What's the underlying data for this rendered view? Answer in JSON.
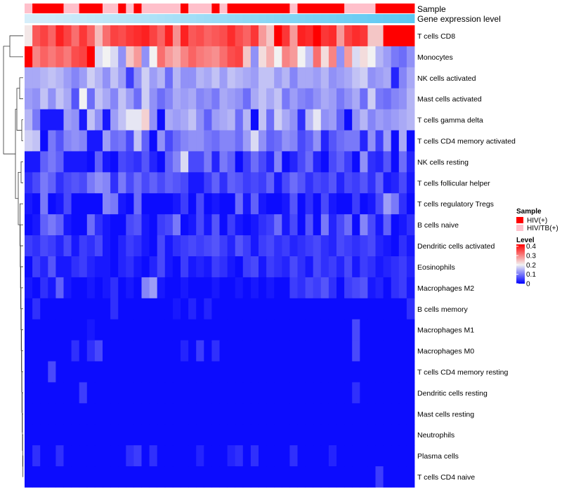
{
  "chart_data": {
    "type": "heatmap",
    "annotation_rows": [
      "Sample",
      "Gene expression level"
    ],
    "row_labels": [
      "T cells CD8",
      "Monocytes",
      "NK cells activated",
      "Mast cells activated",
      "T cells gamma delta",
      "T cells CD4 memory activated",
      "NK cells resting",
      "T cells follicular helper",
      "T cells regulatory  Tregs",
      "B cells naive",
      "Dendritic cells activated",
      "Eosinophils",
      "Macrophages M2",
      "B cells memory",
      "Macrophages M1",
      "Macrophages M0",
      "T cells CD4 memory resting",
      "Dendritic cells resting",
      "Mast cells resting",
      "Neutrophils",
      "Plasma cells",
      "T cells CD4 naive"
    ],
    "sample_groups": [
      "HIV/TB(+)",
      "HIV(+)",
      "HIV(+)",
      "HIV(+)",
      "HIV(+)",
      "HIV/TB(+)",
      "HIV/TB(+)",
      "HIV(+)",
      "HIV(+)",
      "HIV(+)",
      "HIV/TB(+)",
      "HIV/TB(+)",
      "HIV(+)",
      "HIV/TB(+)",
      "HIV(+)",
      "HIV/TB(+)",
      "HIV/TB(+)",
      "HIV/TB(+)",
      "HIV/TB(+)",
      "HIV/TB(+)",
      "HIV(+)",
      "HIV/TB(+)",
      "HIV/TB(+)",
      "HIV/TB(+)",
      "HIV(+)",
      "HIV/TB(+)",
      "HIV(+)",
      "HIV(+)",
      "HIV(+)",
      "HIV(+)",
      "HIV(+)",
      "HIV(+)",
      "HIV(+)",
      "HIV(+)",
      "HIV/TB(+)",
      "HIV(+)",
      "HIV(+)",
      "HIV(+)",
      "HIV(+)",
      "HIV(+)",
      "HIV(+)",
      "HIV/TB(+)",
      "HIV/TB(+)",
      "HIV/TB(+)",
      "HIV/TB(+)",
      "HIV(+)",
      "HIV(+)",
      "HIV(+)",
      "HIV(+)",
      "HIV(+)"
    ],
    "expression_level_gradient": [
      "#d6eefa",
      "#5cc8f2"
    ],
    "values": [
      [
        0.21,
        0.34,
        0.36,
        0.33,
        0.39,
        0.36,
        0.32,
        0.37,
        0.33,
        0.25,
        0.32,
        0.36,
        0.35,
        0.37,
        0.38,
        0.39,
        0.36,
        0.33,
        0.39,
        0.29,
        0.39,
        0.34,
        0.35,
        0.33,
        0.34,
        0.35,
        0.38,
        0.35,
        0.33,
        0.37,
        0.28,
        0.24,
        0.42,
        0.37,
        0.28,
        0.39,
        0.38,
        0.42,
        0.37,
        0.38,
        0.28,
        0.36,
        0.38,
        0.37,
        0.24,
        0.24,
        0.42,
        0.42,
        0.42,
        0.42
      ],
      [
        0.42,
        0.3,
        0.33,
        0.31,
        0.33,
        0.31,
        0.35,
        0.36,
        0.42,
        0.18,
        0.2,
        0.18,
        0.12,
        0.24,
        0.28,
        0.12,
        0.2,
        0.32,
        0.28,
        0.26,
        0.3,
        0.33,
        0.31,
        0.3,
        0.29,
        0.32,
        0.35,
        0.36,
        0.24,
        0.12,
        0.22,
        0.26,
        0.2,
        0.3,
        0.28,
        0.2,
        0.16,
        0.32,
        0.22,
        0.3,
        0.12,
        0.28,
        0.18,
        0.22,
        0.2,
        0.15,
        0.13,
        0.1,
        0.09,
        0.12
      ],
      [
        0.14,
        0.14,
        0.15,
        0.16,
        0.15,
        0.13,
        0.11,
        0.13,
        0.17,
        0.15,
        0.12,
        0.16,
        0.13,
        0.05,
        0.12,
        0.17,
        0.13,
        0.15,
        0.09,
        0.15,
        0.12,
        0.12,
        0.15,
        0.14,
        0.16,
        0.13,
        0.16,
        0.15,
        0.14,
        0.13,
        0.16,
        0.16,
        0.13,
        0.15,
        0.11,
        0.14,
        0.14,
        0.13,
        0.15,
        0.12,
        0.13,
        0.14,
        0.16,
        0.17,
        0.12,
        0.13,
        0.14,
        0.03,
        0.11,
        0.14
      ],
      [
        0.13,
        0.12,
        0.16,
        0.12,
        0.16,
        0.14,
        0.07,
        0.2,
        0.09,
        0.16,
        0.14,
        0.11,
        0.16,
        0.13,
        0.09,
        0.17,
        0.12,
        0.09,
        0.11,
        0.14,
        0.13,
        0.14,
        0.11,
        0.12,
        0.1,
        0.14,
        0.13,
        0.12,
        0.09,
        0.14,
        0.16,
        0.14,
        0.16,
        0.1,
        0.13,
        0.11,
        0.1,
        0.12,
        0.14,
        0.13,
        0.1,
        0.12,
        0.14,
        0.09,
        0.17,
        0.1,
        0.09,
        0.11,
        0.12,
        0.15
      ],
      [
        0.15,
        0.1,
        0.02,
        0.02,
        0.02,
        0.13,
        0.12,
        0.02,
        0.16,
        0.12,
        0.02,
        0.13,
        0.16,
        0.19,
        0.19,
        0.23,
        0.12,
        0.01,
        0.14,
        0.13,
        0.14,
        0.16,
        0.12,
        0.08,
        0.13,
        0.14,
        0.15,
        0.09,
        0.15,
        0.01,
        0.16,
        0.09,
        0.17,
        0.14,
        0.12,
        0.04,
        0.15,
        0.19,
        0.12,
        0.13,
        0.08,
        0.01,
        0.12,
        0.15,
        0.11,
        0.13,
        0.12,
        0.13,
        0.14,
        0.15
      ],
      [
        0.17,
        0.16,
        0.01,
        0.1,
        0.07,
        0.11,
        0.12,
        0.11,
        0.02,
        0.02,
        0.13,
        0.09,
        0.1,
        0.06,
        0.16,
        0.08,
        0.01,
        0.12,
        0.06,
        0.09,
        0.11,
        0.12,
        0.12,
        0.1,
        0.09,
        0.11,
        0.11,
        0.09,
        0.13,
        0.18,
        0.12,
        0.08,
        0.09,
        0.12,
        0.11,
        0.06,
        0.08,
        0.12,
        0.03,
        0.07,
        0.09,
        0.1,
        0.1,
        0.03,
        0.12,
        0.05,
        0.13,
        0.01,
        0.14,
        0.01
      ],
      [
        0.02,
        0.02,
        0.08,
        0.1,
        0.08,
        0.02,
        0.02,
        0.02,
        0.01,
        0.08,
        0.02,
        0.01,
        0.06,
        0.05,
        0.04,
        0.07,
        0.03,
        0.01,
        0.08,
        0.11,
        0.18,
        0.06,
        0.06,
        0.1,
        0.03,
        0.1,
        0.08,
        0.01,
        0.05,
        0.09,
        0.06,
        0.03,
        0.11,
        0.01,
        0.03,
        0.06,
        0.09,
        0.03,
        0.01,
        0.06,
        0.08,
        0.05,
        0.01,
        0.12,
        0.04,
        0.03,
        0.07,
        0.01,
        0.09,
        0.03
      ],
      [
        0.04,
        0.06,
        0.1,
        0.08,
        0.04,
        0.06,
        0.07,
        0.06,
        0.1,
        0.12,
        0.11,
        0.04,
        0.1,
        0.06,
        0.09,
        0.06,
        0.08,
        0.06,
        0.08,
        0.07,
        0.06,
        0.02,
        0.02,
        0.05,
        0.08,
        0.04,
        0.08,
        0.07,
        0.05,
        0.06,
        0.05,
        0.08,
        0.02,
        0.06,
        0.09,
        0.07,
        0.04,
        0.06,
        0.05,
        0.07,
        0.03,
        0.06,
        0.05,
        0.07,
        0.04,
        0.08,
        0.02,
        0.03,
        0.06,
        0.02
      ],
      [
        0.02,
        0.01,
        0.1,
        0.01,
        0.02,
        0.06,
        0.01,
        0.01,
        0.01,
        0.01,
        0.11,
        0.1,
        0.02,
        0.01,
        0.09,
        0.01,
        0.01,
        0.01,
        0.01,
        0.02,
        0.05,
        0.01,
        0.06,
        0.01,
        0.02,
        0.01,
        0.01,
        0.09,
        0.02,
        0.08,
        0.02,
        0.01,
        0.01,
        0.02,
        0.07,
        0.01,
        0.04,
        0.01,
        0.06,
        0.02,
        0.01,
        0.01,
        0.05,
        0.01,
        0.02,
        0.06,
        0.13,
        0.1,
        0.04,
        0.01
      ],
      [
        0.01,
        0.02,
        0.08,
        0.1,
        0.08,
        0.02,
        0.01,
        0.01,
        0.09,
        0.04,
        0.02,
        0.01,
        0.01,
        0.06,
        0.07,
        0.02,
        0.01,
        0.05,
        0.06,
        0.1,
        0.01,
        0.02,
        0.06,
        0.02,
        0.07,
        0.01,
        0.05,
        0.02,
        0.01,
        0.02,
        0.04,
        0.05,
        0.09,
        0.02,
        0.06,
        0.01,
        0.07,
        0.01,
        0.1,
        0.03,
        0.06,
        0.09,
        0.01,
        0.11,
        0.06,
        0.02,
        0.08,
        0.01,
        0.02,
        0.04
      ],
      [
        0.05,
        0.04,
        0.06,
        0.05,
        0.03,
        0.06,
        0.02,
        0.05,
        0.04,
        0.06,
        0.02,
        0.01,
        0.03,
        0.05,
        0.04,
        0.02,
        0.01,
        0.06,
        0.02,
        0.04,
        0.05,
        0.06,
        0.05,
        0.06,
        0.07,
        0.05,
        0.03,
        0.07,
        0.05,
        0.02,
        0.05,
        0.06,
        0.04,
        0.05,
        0.03,
        0.04,
        0.05,
        0.06,
        0.04,
        0.03,
        0.06,
        0.05,
        0.04,
        0.05,
        0.06,
        0.03,
        0.02,
        0.01,
        0.04,
        0.02
      ],
      [
        0.01,
        0.05,
        0.03,
        0.07,
        0.02,
        0.02,
        0.04,
        0.05,
        0.03,
        0.02,
        0.02,
        0.01,
        0.03,
        0.04,
        0.02,
        0.01,
        0.03,
        0.06,
        0.02,
        0.01,
        0.05,
        0.02,
        0.03,
        0.02,
        0.05,
        0.04,
        0.02,
        0.01,
        0.05,
        0.06,
        0.02,
        0.05,
        0.04,
        0.03,
        0.06,
        0.04,
        0.02,
        0.06,
        0.04,
        0.05,
        0.03,
        0.06,
        0.02,
        0.05,
        0.04,
        0.02,
        0.03,
        0.04,
        0.05,
        0.03
      ],
      [
        0.02,
        0.01,
        0.04,
        0.02,
        0.08,
        0.02,
        0.01,
        0.01,
        0.02,
        0.01,
        0.02,
        0.04,
        0.01,
        0.02,
        0.01,
        0.11,
        0.13,
        0.02,
        0.01,
        0.01,
        0.02,
        0.01,
        0.01,
        0.01,
        0.02,
        0.01,
        0.01,
        0.02,
        0.01,
        0.02,
        0.01,
        0.02,
        0.01,
        0.01,
        0.05,
        0.04,
        0.06,
        0.05,
        0.07,
        0.04,
        0.01,
        0.05,
        0.06,
        0.07,
        0.02,
        0.03,
        0.01,
        0.04,
        0.05,
        0.02
      ],
      [
        0.01,
        0.04,
        0.01,
        0.01,
        0.01,
        0.01,
        0.01,
        0.01,
        0.01,
        0.01,
        0.01,
        0.04,
        0.01,
        0.01,
        0.01,
        0.01,
        0.01,
        0.01,
        0.01,
        0.02,
        0.01,
        0.03,
        0.01,
        0.03,
        0.01,
        0.01,
        0.01,
        0.01,
        0.01,
        0.01,
        0.01,
        0.01,
        0.01,
        0.01,
        0.01,
        0.01,
        0.01,
        0.01,
        0.01,
        0.01,
        0.01,
        0.01,
        0.01,
        0.01,
        0.01,
        0.01,
        0.01,
        0.01,
        0.01,
        0.04
      ],
      [
        0.01,
        0.01,
        0.01,
        0.01,
        0.01,
        0.01,
        0.01,
        0.01,
        0.02,
        0.01,
        0.01,
        0.01,
        0.01,
        0.01,
        0.01,
        0.01,
        0.01,
        0.01,
        0.01,
        0.01,
        0.01,
        0.01,
        0.01,
        0.01,
        0.01,
        0.01,
        0.01,
        0.01,
        0.01,
        0.01,
        0.01,
        0.01,
        0.01,
        0.01,
        0.01,
        0.01,
        0.01,
        0.01,
        0.01,
        0.01,
        0.01,
        0.01,
        0.06,
        0.01,
        0.01,
        0.01,
        0.01,
        0.01,
        0.01,
        0.01
      ],
      [
        0.01,
        0.01,
        0.01,
        0.01,
        0.01,
        0.01,
        0.04,
        0.01,
        0.04,
        0.06,
        0.01,
        0.01,
        0.01,
        0.01,
        0.01,
        0.01,
        0.01,
        0.01,
        0.01,
        0.01,
        0.03,
        0.01,
        0.05,
        0.01,
        0.04,
        0.01,
        0.01,
        0.01,
        0.01,
        0.01,
        0.01,
        0.01,
        0.01,
        0.01,
        0.01,
        0.01,
        0.01,
        0.01,
        0.01,
        0.01,
        0.01,
        0.01,
        0.06,
        0.01,
        0.01,
        0.01,
        0.01,
        0.01,
        0.01,
        0.01
      ],
      [
        0.01,
        0.01,
        0.01,
        0.06,
        0.01,
        0.01,
        0.01,
        0.01,
        0.01,
        0.01,
        0.01,
        0.01,
        0.01,
        0.01,
        0.01,
        0.01,
        0.01,
        0.01,
        0.01,
        0.01,
        0.01,
        0.01,
        0.01,
        0.01,
        0.01,
        0.01,
        0.01,
        0.01,
        0.01,
        0.01,
        0.01,
        0.01,
        0.01,
        0.01,
        0.01,
        0.01,
        0.01,
        0.01,
        0.01,
        0.01,
        0.01,
        0.01,
        0.01,
        0.01,
        0.01,
        0.01,
        0.01,
        0.01,
        0.01,
        0.01
      ],
      [
        0.01,
        0.01,
        0.01,
        0.01,
        0.01,
        0.01,
        0.01,
        0.05,
        0.01,
        0.01,
        0.01,
        0.01,
        0.01,
        0.01,
        0.01,
        0.01,
        0.01,
        0.01,
        0.01,
        0.01,
        0.01,
        0.01,
        0.01,
        0.01,
        0.01,
        0.01,
        0.01,
        0.01,
        0.01,
        0.01,
        0.01,
        0.01,
        0.01,
        0.01,
        0.01,
        0.01,
        0.01,
        0.01,
        0.01,
        0.01,
        0.01,
        0.01,
        0.04,
        0.01,
        0.01,
        0.01,
        0.01,
        0.01,
        0.01,
        0.01
      ],
      [
        0.01,
        0.01,
        0.01,
        0.01,
        0.01,
        0.01,
        0.01,
        0.01,
        0.01,
        0.01,
        0.01,
        0.01,
        0.01,
        0.01,
        0.01,
        0.01,
        0.01,
        0.01,
        0.01,
        0.01,
        0.01,
        0.01,
        0.01,
        0.01,
        0.01,
        0.01,
        0.01,
        0.01,
        0.01,
        0.01,
        0.01,
        0.01,
        0.01,
        0.01,
        0.01,
        0.01,
        0.01,
        0.01,
        0.01,
        0.01,
        0.01,
        0.01,
        0.01,
        0.01,
        0.01,
        0.01,
        0.01,
        0.01,
        0.01,
        0.01
      ],
      [
        0.01,
        0.01,
        0.01,
        0.01,
        0.01,
        0.01,
        0.01,
        0.01,
        0.01,
        0.01,
        0.01,
        0.01,
        0.01,
        0.01,
        0.01,
        0.01,
        0.01,
        0.01,
        0.01,
        0.01,
        0.01,
        0.01,
        0.01,
        0.01,
        0.01,
        0.01,
        0.01,
        0.01,
        0.01,
        0.01,
        0.01,
        0.01,
        0.01,
        0.01,
        0.01,
        0.01,
        0.01,
        0.01,
        0.01,
        0.01,
        0.01,
        0.01,
        0.01,
        0.01,
        0.01,
        0.01,
        0.01,
        0.01,
        0.01,
        0.01
      ],
      [
        0.01,
        0.04,
        0.01,
        0.01,
        0.04,
        0.01,
        0.01,
        0.01,
        0.01,
        0.01,
        0.01,
        0.01,
        0.01,
        0.04,
        0.05,
        0.01,
        0.04,
        0.01,
        0.01,
        0.01,
        0.01,
        0.01,
        0.03,
        0.01,
        0.01,
        0.01,
        0.03,
        0.04,
        0.01,
        0.04,
        0.01,
        0.01,
        0.01,
        0.01,
        0.04,
        0.01,
        0.01,
        0.01,
        0.01,
        0.03,
        0.01,
        0.01,
        0.01,
        0.01,
        0.01,
        0.01,
        0.01,
        0.01,
        0.01,
        0.01
      ],
      [
        0.01,
        0.01,
        0.01,
        0.01,
        0.01,
        0.01,
        0.01,
        0.01,
        0.01,
        0.01,
        0.01,
        0.01,
        0.01,
        0.01,
        0.01,
        0.01,
        0.01,
        0.01,
        0.01,
        0.01,
        0.01,
        0.01,
        0.01,
        0.01,
        0.01,
        0.01,
        0.01,
        0.01,
        0.01,
        0.01,
        0.01,
        0.01,
        0.01,
        0.01,
        0.01,
        0.01,
        0.01,
        0.01,
        0.01,
        0.01,
        0.01,
        0.01,
        0.01,
        0.01,
        0.01,
        0.05,
        0.01,
        0.01,
        0.01,
        0.01
      ]
    ],
    "color_scale": {
      "min": 0,
      "mid": 0.2,
      "max": 0.42,
      "low_color": "#0000ff",
      "mid_color": "#f2f2f2",
      "high_color": "#ff0000"
    },
    "legend": {
      "sample_title": "Sample",
      "sample_entries": [
        {
          "label": "HIV(+)",
          "color": "#ff0000"
        },
        {
          "label": "HIV/TB(+)",
          "color": "#ffc0cb"
        }
      ],
      "level_title": "Level",
      "level_ticks": [
        "0.4",
        "0.3",
        "0.2",
        "0.1",
        "0"
      ],
      "level_tick_values": [
        0.4,
        0.3,
        0.2,
        0.1,
        0
      ],
      "placement": "right"
    }
  }
}
